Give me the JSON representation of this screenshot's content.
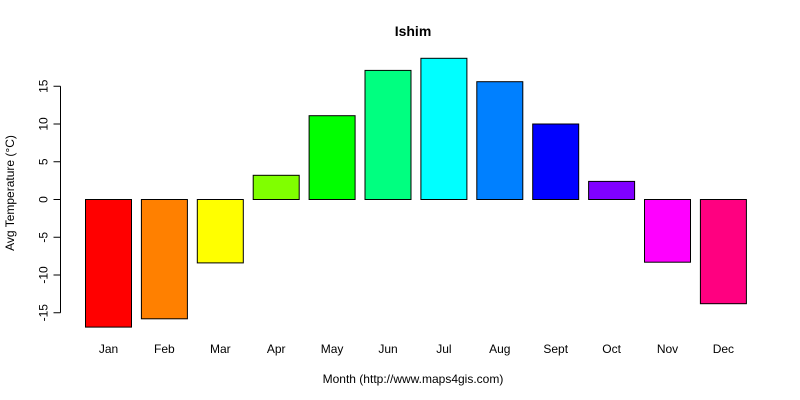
{
  "chart_data": {
    "type": "bar",
    "title": "Ishim",
    "xlabel": "Month (http://www.maps4gis.com)",
    "ylabel": "Avg Temperature (°C)",
    "categories": [
      "Jan",
      "Feb",
      "Mar",
      "Apr",
      "May",
      "Jun",
      "Jul",
      "Aug",
      "Sept",
      "Oct",
      "Nov",
      "Dec"
    ],
    "values": [
      -16.9,
      -15.8,
      -8.4,
      3.2,
      11.1,
      17.1,
      18.7,
      15.6,
      10.0,
      2.4,
      -8.3,
      -13.8
    ],
    "colors": [
      "#FF0000",
      "#FF8000",
      "#FFFF00",
      "#80FF00",
      "#00FF00",
      "#00FF80",
      "#00FFFF",
      "#0080FF",
      "#0000FF",
      "#8000FF",
      "#FF00FF",
      "#FF0080"
    ],
    "yticks": [
      -15,
      -10,
      -5,
      0,
      5,
      10,
      15
    ],
    "ytick_labels": [
      "-15",
      "-10",
      "-5",
      "0",
      "5",
      "10",
      "15"
    ],
    "ylim": [
      -17,
      18.7
    ],
    "grid": false,
    "legend": "none"
  }
}
